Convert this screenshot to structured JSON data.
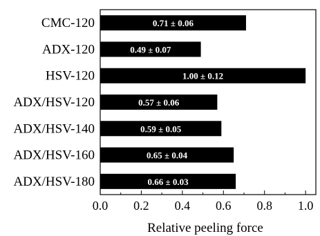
{
  "chart_data": {
    "type": "bar",
    "orientation": "horizontal",
    "categories": [
      "CMC-120",
      "ADX-120",
      "HSV-120",
      "ADX/HSV-120",
      "ADX/HSV-140",
      "ADX/HSV-160",
      "ADX/HSV-180"
    ],
    "values": [
      0.71,
      0.49,
      1.0,
      0.57,
      0.59,
      0.65,
      0.66
    ],
    "value_labels": [
      "0.71 ± 0.06",
      "0.49 ± 0.07",
      "1.00 ± 0.12",
      "0.57 ± 0.06",
      "0.59 ± 0.05",
      "0.65 ± 0.04",
      "0.66 ± 0.03"
    ],
    "xlabel": "Relative peeling force",
    "ylabel": "",
    "title": "",
    "xlim": [
      0.0,
      1.05
    ],
    "xticks": [
      0.0,
      0.2,
      0.4,
      0.6,
      0.8,
      1.0
    ],
    "xtick_labels": [
      "0.0",
      "0.2",
      "0.4",
      "0.6",
      "0.8",
      "1.0"
    ],
    "grid": false,
    "legend": "none",
    "bar_color": "#000000",
    "label_color": "#ffffff"
  }
}
